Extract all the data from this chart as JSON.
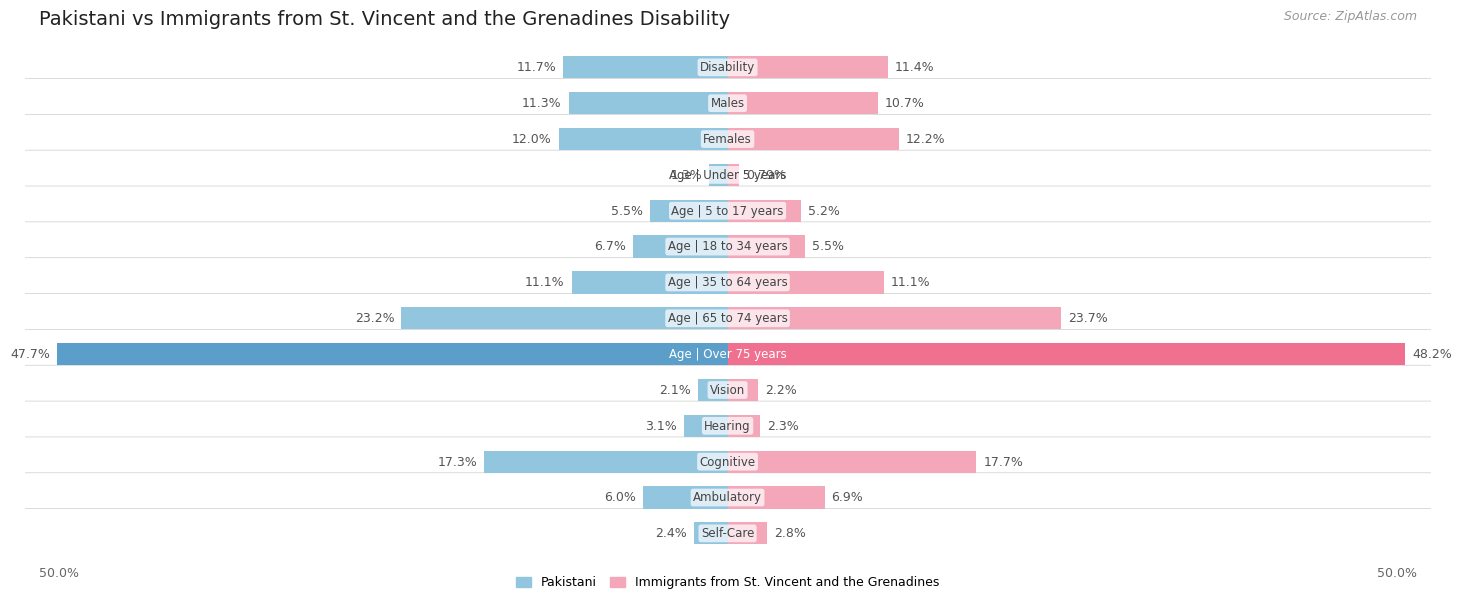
{
  "title": "Pakistani vs Immigrants from St. Vincent and the Grenadines Disability",
  "source": "Source: ZipAtlas.com",
  "categories": [
    "Disability",
    "Males",
    "Females",
    "Age | Under 5 years",
    "Age | 5 to 17 years",
    "Age | 18 to 34 years",
    "Age | 35 to 64 years",
    "Age | 65 to 74 years",
    "Age | Over 75 years",
    "Vision",
    "Hearing",
    "Cognitive",
    "Ambulatory",
    "Self-Care"
  ],
  "pakistani_values": [
    11.7,
    11.3,
    12.0,
    1.3,
    5.5,
    6.7,
    11.1,
    23.2,
    47.7,
    2.1,
    3.1,
    17.3,
    6.0,
    2.4
  ],
  "immigrant_values": [
    11.4,
    10.7,
    12.2,
    0.79,
    5.2,
    5.5,
    11.1,
    23.7,
    48.2,
    2.2,
    2.3,
    17.7,
    6.9,
    2.8
  ],
  "pakistani_labels": [
    "11.7%",
    "11.3%",
    "12.0%",
    "1.3%",
    "5.5%",
    "6.7%",
    "11.1%",
    "23.2%",
    "47.7%",
    "2.1%",
    "3.1%",
    "17.3%",
    "6.0%",
    "2.4%"
  ],
  "immigrant_labels": [
    "11.4%",
    "10.7%",
    "12.2%",
    "0.79%",
    "5.2%",
    "5.5%",
    "11.1%",
    "23.7%",
    "48.2%",
    "2.2%",
    "2.3%",
    "17.7%",
    "6.9%",
    "2.8%"
  ],
  "pakistani_color": "#92C5DE",
  "immigrant_color": "#F4A7B9",
  "over75_pak_color": "#5B9EC9",
  "over75_imm_color": "#F07090",
  "axis_max": 50.0,
  "row_bg_even": "#f0f0f0",
  "row_bg_odd": "#e8e8e8",
  "row_container_color": "#ffffff",
  "legend_pakistani": "Pakistani",
  "legend_immigrant": "Immigrants from St. Vincent and the Grenadines",
  "title_fontsize": 14,
  "label_fontsize": 9,
  "category_fontsize": 8.5,
  "source_fontsize": 9
}
